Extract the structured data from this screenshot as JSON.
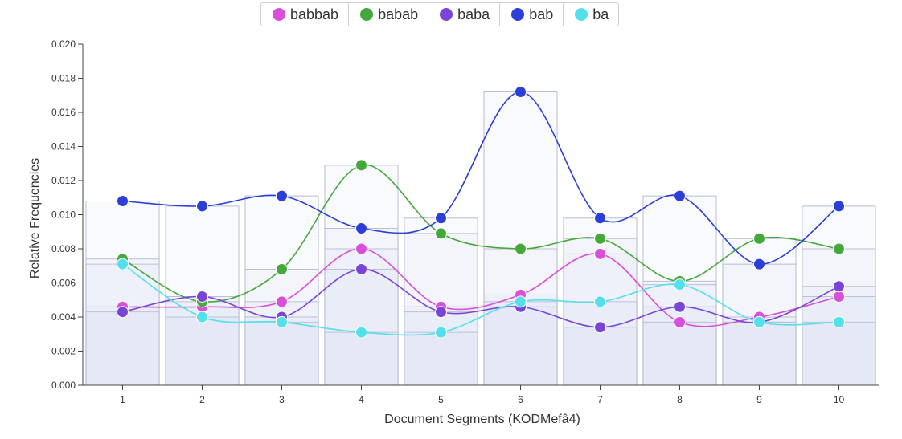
{
  "chart_data": {
    "type": "line",
    "xlabel": "Document Segments (KODMefâ4)",
    "ylabel": "Relative Frequencies",
    "categories": [
      "1",
      "2",
      "3",
      "4",
      "5",
      "6",
      "7",
      "8",
      "9",
      "10"
    ],
    "ylim": [
      0,
      0.02
    ],
    "yticks": [
      "0.000",
      "0.002",
      "0.004",
      "0.006",
      "0.008",
      "0.010",
      "0.012",
      "0.014",
      "0.016",
      "0.018",
      "0.020"
    ],
    "legend_position": "top-center",
    "series": [
      {
        "name": "babbab",
        "color": "#d94fd9",
        "values": [
          0.0046,
          0.0046,
          0.0049,
          0.008,
          0.0046,
          0.0053,
          0.0077,
          0.0037,
          0.004,
          0.0052
        ]
      },
      {
        "name": "babab",
        "color": "#44a83a",
        "values": [
          0.0074,
          0.0049,
          0.0068,
          0.0129,
          0.0089,
          0.008,
          0.0086,
          0.0061,
          0.0086,
          0.008
        ]
      },
      {
        "name": "baba",
        "color": "#7a45d6",
        "values": [
          0.0043,
          0.0052,
          0.004,
          0.0068,
          0.0043,
          0.0046,
          0.0034,
          0.0046,
          0.0037,
          0.0058
        ]
      },
      {
        "name": "bab",
        "color": "#2b3fd6",
        "values": [
          0.0108,
          0.0105,
          0.0111,
          0.0092,
          0.0098,
          0.0172,
          0.0098,
          0.0111,
          0.0071,
          0.0105
        ]
      },
      {
        "name": "ba",
        "color": "#54e0ea",
        "values": [
          0.0071,
          0.004,
          0.0037,
          0.0031,
          0.0031,
          0.0049,
          0.0049,
          0.0059,
          0.0037,
          0.0037
        ]
      }
    ]
  }
}
